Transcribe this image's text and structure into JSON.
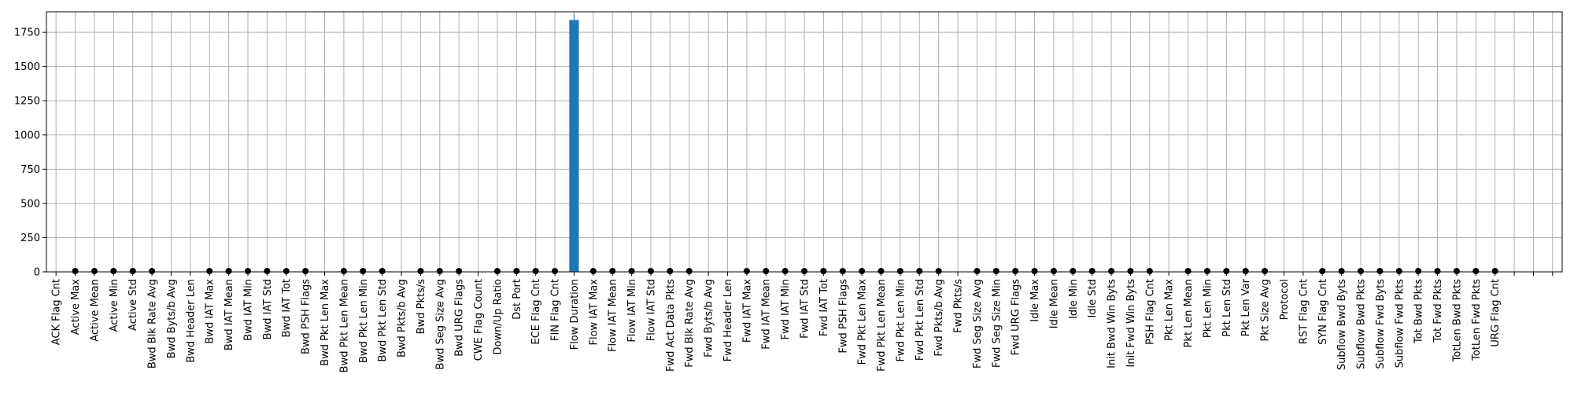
{
  "chart_data": {
    "type": "bar",
    "title": "",
    "xlabel": "",
    "ylabel": "",
    "ylim": [
      0,
      1900
    ],
    "yticks": [
      0,
      250,
      500,
      750,
      1000,
      1250,
      1500,
      1750
    ],
    "grid": true,
    "bar_color": "#1f77b4",
    "marker_color": "#000000",
    "grid_color": "#b0b0b0",
    "categories": [
      "ACK Flag Cnt",
      "Active Max",
      "Active Mean",
      "Active Min",
      "Active Std",
      "Bwd Blk Rate Avg",
      "Bwd Byts/b Avg",
      "Bwd Header Len",
      "Bwd IAT Max",
      "Bwd IAT Mean",
      "Bwd IAT Min",
      "Bwd IAT Std",
      "Bwd IAT Tot",
      "Bwd PSH Flags",
      "Bwd Pkt Len Max",
      "Bwd Pkt Len Mean",
      "Bwd Pkt Len Min",
      "Bwd Pkt Len Std",
      "Bwd Pkts/b Avg",
      "Bwd Pkts/s",
      "Bwd Seg Size Avg",
      "Bwd URG Flags",
      "CWE Flag Count",
      "Down/Up Ratio",
      "Dst Port",
      "ECE Flag Cnt",
      "FIN Flag Cnt",
      "Flow Duration",
      "Flow IAT Max",
      "Flow IAT Mean",
      "Flow IAT Min",
      "Flow IAT Std",
      "Fwd Act Data Pkts",
      "Fwd Blk Rate Avg",
      "Fwd Byts/b Avg",
      "Fwd Header Len",
      "Fwd IAT Max",
      "Fwd IAT Mean",
      "Fwd IAT Min",
      "Fwd IAT Std",
      "Fwd IAT Tot",
      "Fwd PSH Flags",
      "Fwd Pkt Len Max",
      "Fwd Pkt Len Mean",
      "Fwd Pkt Len Min",
      "Fwd Pkt Len Std",
      "Fwd Pkts/b Avg",
      "Fwd Pkts/s",
      "Fwd Seg Size Avg",
      "Fwd Seg Size Min",
      "Fwd URG Flags",
      "Idle Max",
      "Idle Mean",
      "Idle Min",
      "Idle Std",
      "Init Bwd Win Byts",
      "Init Fwd Win Byts",
      "PSH Flag Cnt",
      "Pkt Len Max",
      "Pkt Len Mean",
      "Pkt Len Min",
      "Pkt Len Std",
      "Pkt Len Var",
      "Pkt Size Avg",
      "Protocol",
      "RST Flag Cnt",
      "SYN Flag Cnt",
      "Subflow Bwd Byts",
      "Subflow Bwd Pkts",
      "Subflow Fwd Byts",
      "Subflow Fwd Pkts",
      "Tot Bwd Pkts",
      "Tot Fwd Pkts",
      "TotLen Bwd Pkts",
      "TotLen Fwd Pkts",
      "URG Flag Cnt"
    ],
    "values": [
      0,
      0,
      0,
      0,
      0,
      0,
      0,
      0,
      0,
      0,
      0,
      0,
      0,
      0,
      0,
      0,
      0,
      0,
      0,
      0,
      0,
      0,
      0,
      0,
      0,
      0,
      0,
      1840,
      0,
      0,
      0,
      0,
      0,
      0,
      0,
      0,
      0,
      0,
      0,
      0,
      0,
      0,
      0,
      0,
      0,
      0,
      0,
      0,
      0,
      0,
      0,
      0,
      0,
      0,
      0,
      0,
      0,
      0,
      0,
      0,
      0,
      0,
      0,
      0,
      0,
      0,
      0,
      0,
      0,
      0,
      0,
      0,
      0,
      0,
      0,
      0
    ],
    "outlier_markers": [
      false,
      true,
      true,
      true,
      true,
      true,
      false,
      false,
      true,
      true,
      true,
      true,
      true,
      true,
      false,
      true,
      true,
      true,
      false,
      true,
      true,
      true,
      false,
      true,
      true,
      true,
      true,
      false,
      true,
      true,
      true,
      true,
      true,
      true,
      false,
      false,
      true,
      true,
      true,
      true,
      true,
      true,
      true,
      true,
      true,
      true,
      true,
      false,
      true,
      true,
      true,
      true,
      true,
      true,
      true,
      true,
      true,
      true,
      false,
      true,
      true,
      true,
      true,
      true,
      false,
      false,
      true,
      true,
      true,
      true,
      true,
      true,
      true,
      true,
      true,
      true
    ],
    "extra_slots": 3
  }
}
